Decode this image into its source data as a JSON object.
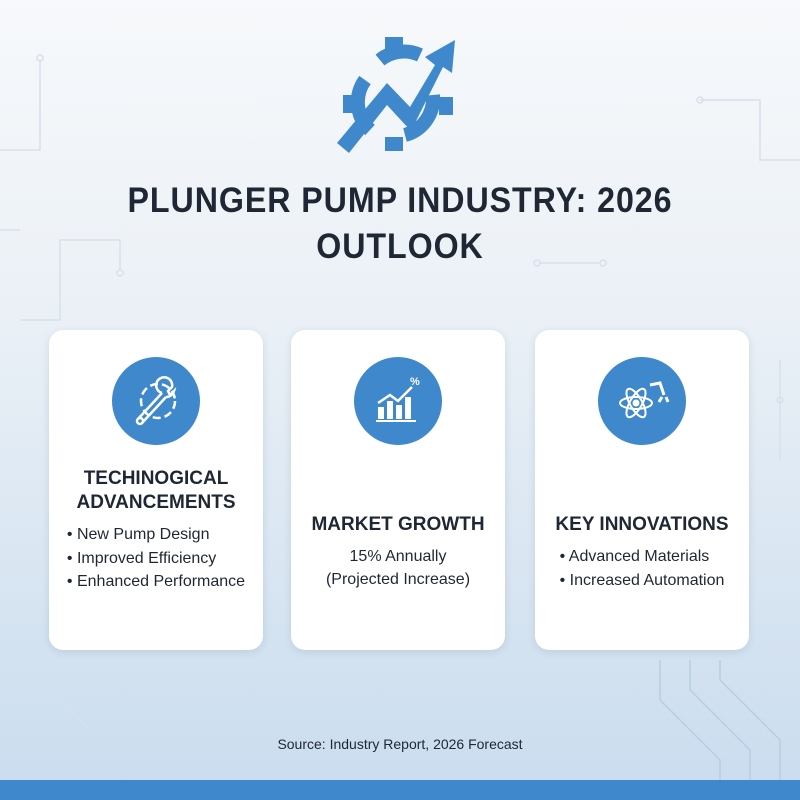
{
  "title_line1": "PLUNGER PUMP INDUSTRY: 2026",
  "title_line2": "OUTLOOK",
  "cards": [
    {
      "icon": "gear-wrench-icon",
      "heading_line1": "TECHINOGICAL",
      "heading_line2": "ADVANCEMENTS",
      "items": [
        "New Pump Design",
        "Improved Efficiency",
        "Enhanced Performance"
      ]
    },
    {
      "icon": "bar-chart-percent-icon",
      "heading": "MARKET GROWTH",
      "lines": [
        "15% Annually",
        "(Projected Increase)"
      ]
    },
    {
      "icon": "atom-robot-arm-icon",
      "heading": "KEY INNOVATIONS",
      "items": [
        "Advanced Materials",
        "Increased Automation"
      ]
    }
  ],
  "source": "Source: Industry Report, 2026 Forecast",
  "colors": {
    "accent": "#3f88cc",
    "text": "#1e2733"
  }
}
